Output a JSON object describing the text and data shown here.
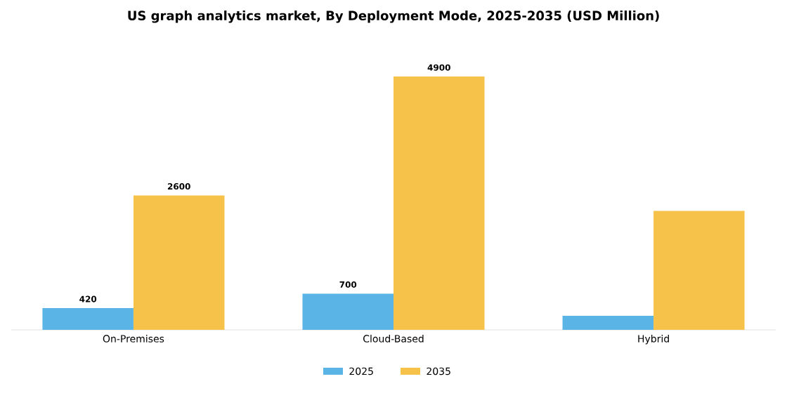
{
  "chart_data": {
    "type": "bar",
    "title": "US graph analytics market, By Deployment Mode, 2025-2035 (USD Million)",
    "categories": [
      "On-Premises",
      "Cloud-Based",
      "Hybrid"
    ],
    "series": [
      {
        "name": "2025",
        "color": "#5ab4e5",
        "values": [
          420,
          700,
          270
        ],
        "value_labels": [
          "420",
          "700",
          null
        ]
      },
      {
        "name": "2035",
        "color": "#f7c24a",
        "values": [
          2600,
          4900,
          2300
        ],
        "value_labels": [
          "2600",
          "4900",
          null
        ]
      }
    ],
    "legend": "bottom",
    "grid": false
  }
}
